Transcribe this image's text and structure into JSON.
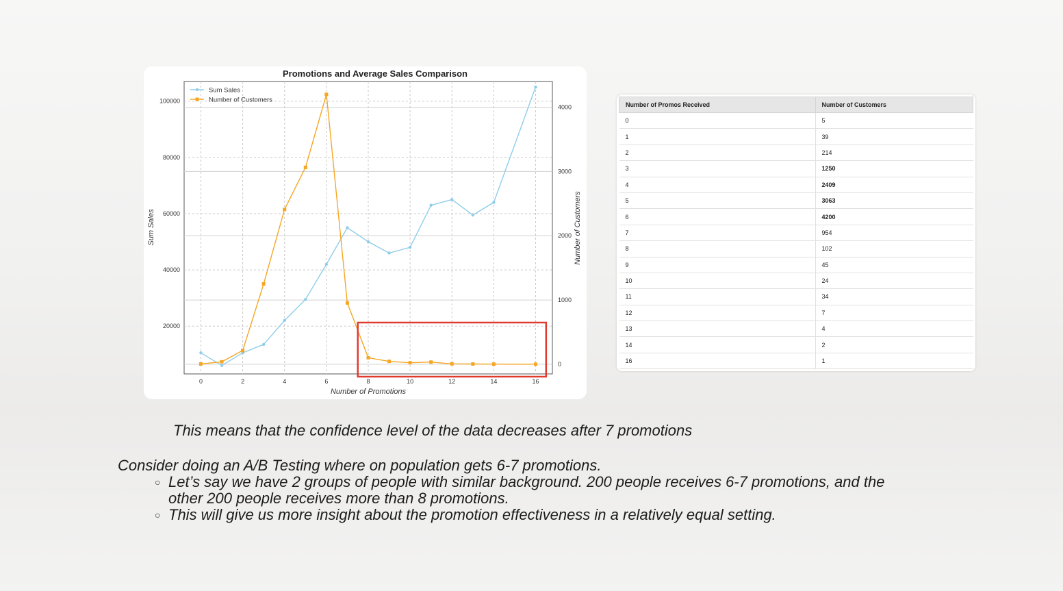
{
  "chart_data": {
    "type": "line",
    "title": "Promotions and Average Sales Comparison",
    "xlabel": "Number of Promotions",
    "ylabel": "Sum Sales",
    "y2label": "Number of Customers",
    "xlim": [
      -0.8,
      16.8
    ],
    "ylim": [
      3000,
      107000
    ],
    "y2lim": [
      -150,
      4400
    ],
    "x_ticks": [
      0,
      2,
      4,
      6,
      8,
      10,
      12,
      14,
      16
    ],
    "y_ticks": [
      20000,
      40000,
      60000,
      80000,
      100000
    ],
    "y2_ticks": [
      0,
      1000,
      2000,
      3000,
      4000
    ],
    "grid": true,
    "legend_position": "top-left",
    "highlight_box": {
      "x_from": 7.5,
      "x_to": 16.5,
      "color": "#e03a2f"
    },
    "series": [
      {
        "name": "Sum Sales",
        "axis": "left",
        "color": "#8fcde8",
        "x": [
          0,
          1,
          2,
          3,
          4,
          5,
          6,
          7,
          8,
          9,
          10,
          11,
          12,
          13,
          14,
          16
        ],
        "values": [
          10500,
          6000,
          10500,
          13500,
          22000,
          29500,
          42000,
          55000,
          50000,
          46000,
          48000,
          63000,
          65000,
          59500,
          64000,
          105000
        ]
      },
      {
        "name": "Number of Customers",
        "axis": "right",
        "color": "#f6a623",
        "x": [
          0,
          1,
          2,
          3,
          4,
          5,
          6,
          7,
          8,
          9,
          10,
          11,
          12,
          13,
          14,
          16
        ],
        "values": [
          5,
          39,
          214,
          1250,
          2409,
          3063,
          4200,
          954,
          102,
          45,
          24,
          34,
          7,
          4,
          2,
          1
        ]
      }
    ]
  },
  "table": {
    "headers": [
      "Number of Promos Received",
      "Number of Customers"
    ],
    "rows": [
      {
        "promos": "0",
        "customers": "5",
        "bold": false
      },
      {
        "promos": "1",
        "customers": "39",
        "bold": false
      },
      {
        "promos": "2",
        "customers": "214",
        "bold": false
      },
      {
        "promos": "3",
        "customers": "1250",
        "bold": true
      },
      {
        "promos": "4",
        "customers": "2409",
        "bold": true
      },
      {
        "promos": "5",
        "customers": "3063",
        "bold": true
      },
      {
        "promos": "6",
        "customers": "4200",
        "bold": true
      },
      {
        "promos": "7",
        "customers": "954",
        "bold": false
      },
      {
        "promos": "8",
        "customers": "102",
        "bold": false
      },
      {
        "promos": "9",
        "customers": "45",
        "bold": false
      },
      {
        "promos": "10",
        "customers": "24",
        "bold": false
      },
      {
        "promos": "11",
        "customers": "34",
        "bold": false
      },
      {
        "promos": "12",
        "customers": "7",
        "bold": false
      },
      {
        "promos": "13",
        "customers": "4",
        "bold": false
      },
      {
        "promos": "14",
        "customers": "2",
        "bold": false
      },
      {
        "promos": "16",
        "customers": "1",
        "bold": false
      }
    ]
  },
  "text": {
    "confidence_note": "This means that the confidence level of the data decreases after 7 promotions",
    "ab_intro": "Consider doing an A/B Testing where on population gets 6-7 promotions.",
    "bullet_marker": "○",
    "bullet1_line1": "Let’s say we have 2 groups of people with similar background. 200 people receives 6-7 promotions, and the",
    "bullet1_line2": "other 200 people receives more than 8 promotions.",
    "bullet2": "This will give us more insight about the promotion effectiveness in a relatively equal setting."
  }
}
